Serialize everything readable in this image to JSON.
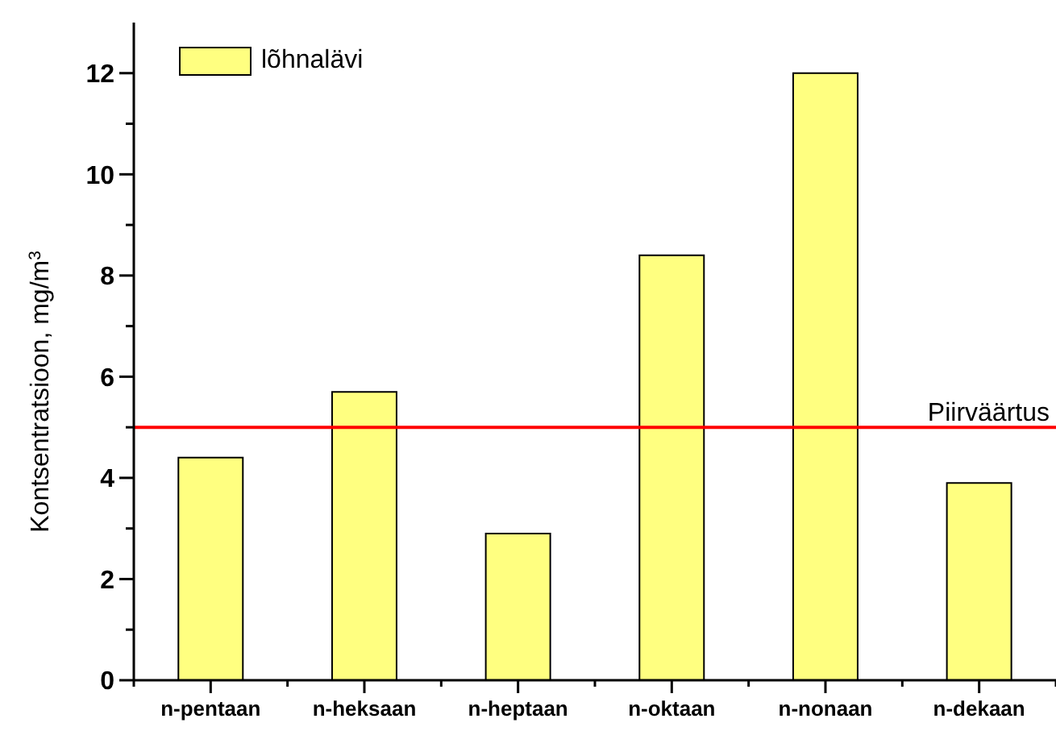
{
  "chart_data": {
    "type": "bar",
    "categories": [
      "n-pentaan",
      "n-heksaan",
      "n-heptaan",
      "n-oktaan",
      "n-nonaan",
      "n-dekaan"
    ],
    "series": [
      {
        "name": "lõhnalävi",
        "color": "#ffff80",
        "values": [
          4.4,
          5.7,
          2.9,
          8.4,
          12.0,
          3.9
        ]
      }
    ],
    "ylabel": "Kontsentratsioon, mg/m$^{3}$",
    "ylim": [
      0,
      13
    ],
    "yticks": [
      0,
      {
        "value": 1,
        "label": null
      },
      2,
      {
        "value": 3,
        "label": null
      },
      4,
      {
        "value": 5,
        "label": null
      },
      6,
      {
        "value": 7,
        "label": null
      },
      8,
      {
        "value": 9,
        "label": null
      },
      10,
      {
        "value": 11,
        "label": null
      },
      12
    ],
    "ref_lines": [
      {
        "axis": "y",
        "value": 5,
        "label": "Piirväärtus",
        "color": "#ff0000"
      }
    ],
    "legend": "top left"
  }
}
